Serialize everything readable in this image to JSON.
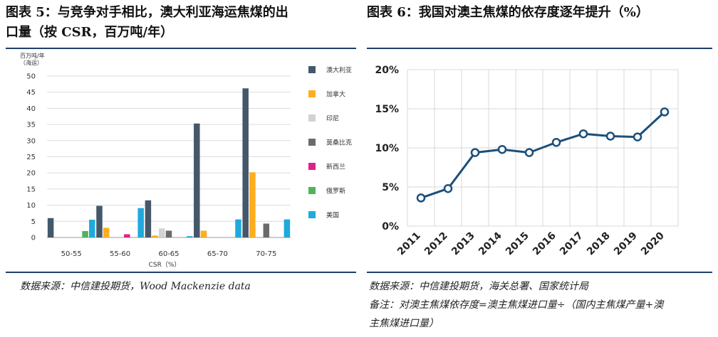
{
  "left": {
    "title_line1": "图表 5：与竞争对手相比，澳大利亚海运焦煤的出",
    "title_line2": "口量（按 CSR，百万吨/年）",
    "source": "数据来源：中信建投期货，Wood Mackenzie data"
  },
  "right": {
    "title": "图表 6：我国对澳主焦煤的依存度逐年提升（%）",
    "source": "数据来源：中信建投期货，海关总署、国家统计局",
    "note_line1": "备注：对澳主焦煤依存度=澳主焦煤进口量÷（国内主焦煤产量+澳",
    "note_line2": "主焦煤进口量）"
  },
  "chart_data": [
    {
      "type": "bar",
      "ylabel": "百万吨/年 (海运)",
      "ylabel_line1": "百万吨/年",
      "ylabel_line2": "（海运）",
      "xlabel": "CSR（%）",
      "ylim": [
        0,
        50
      ],
      "yticks": [
        "0",
        "5",
        "10",
        "15",
        "20",
        "25",
        "30",
        "35",
        "40",
        "45",
        "50"
      ],
      "categories": [
        "50-55",
        "55-60",
        "60-65",
        "65-70",
        "70-75"
      ],
      "series": [
        {
          "name": "澳大利亚",
          "color": "#44586a",
          "values": [
            6,
            9.8,
            11.5,
            35.3,
            46.2
          ]
        },
        {
          "name": "加拿大",
          "color": "#ffad1f",
          "values": [
            0,
            3,
            0.6,
            2.1,
            20.2
          ]
        },
        {
          "name": "印尼",
          "color": "#d2d2d2",
          "values": [
            0,
            0,
            2.8,
            0,
            0
          ]
        },
        {
          "name": "莫桑比克",
          "color": "#6b6b6b",
          "values": [
            0,
            0,
            2.1,
            0,
            4.3
          ]
        },
        {
          "name": "新西兰",
          "color": "#e0218a",
          "values": [
            0,
            1,
            0,
            0,
            0
          ]
        },
        {
          "name": "俄罗斯",
          "color": "#4fb45a",
          "values": [
            2,
            0,
            0,
            0,
            0
          ]
        },
        {
          "name": "美国",
          "color": "#1fa9dc",
          "values": [
            5.5,
            9.1,
            0.4,
            5.6,
            5.6
          ]
        }
      ],
      "grid": true,
      "legend": "right"
    },
    {
      "type": "line",
      "x": [
        "2011",
        "2012",
        "2013",
        "2014",
        "2015",
        "2016",
        "2017",
        "2018",
        "2019",
        "2020"
      ],
      "y": [
        3.6,
        4.8,
        9.4,
        9.8,
        9.4,
        10.7,
        11.8,
        11.5,
        11.4,
        14.6
      ],
      "ylim": [
        0,
        20
      ],
      "yticks": [
        "0%",
        "5%",
        "10%",
        "15%",
        "20%"
      ],
      "color": "#1b4f7b",
      "grid": true
    }
  ]
}
